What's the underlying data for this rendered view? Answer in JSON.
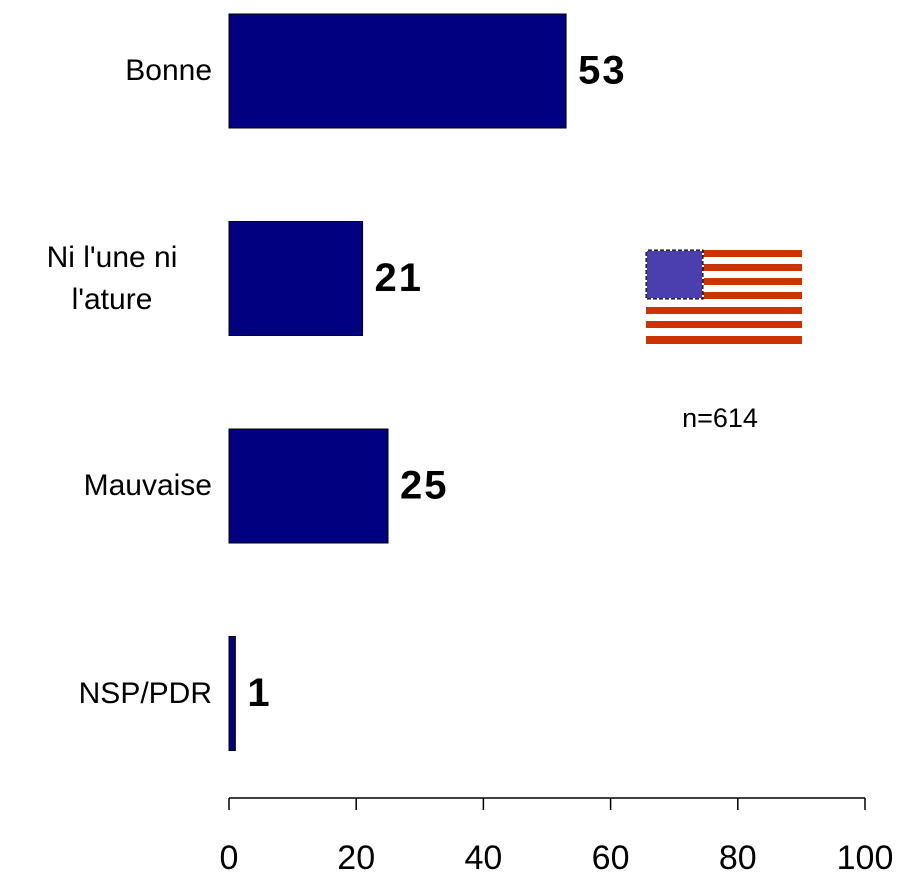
{
  "chart_data": {
    "type": "bar",
    "orientation": "horizontal",
    "categories": [
      "Bonne",
      "Ni l'une ni l'ature",
      "Mauvaise",
      "NSP/PDR"
    ],
    "values": [
      53,
      21,
      25,
      1
    ],
    "color": "#000080",
    "xlim": [
      0,
      100
    ],
    "xticks": [
      0,
      20,
      40,
      60,
      80,
      100
    ],
    "annotation": "n=614"
  }
}
